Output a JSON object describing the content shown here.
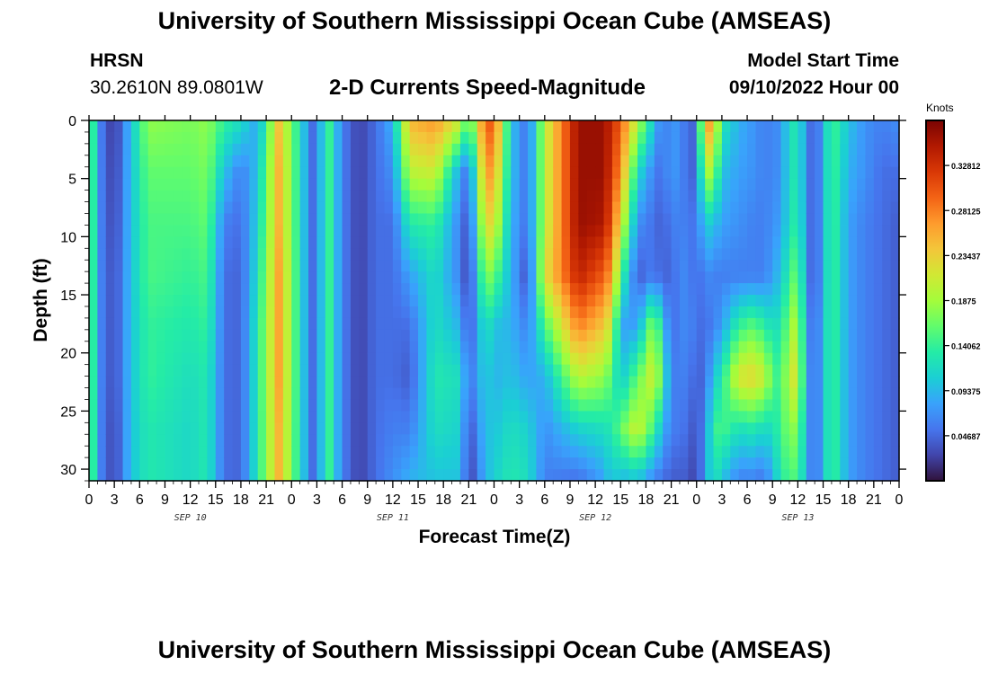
{
  "header": {
    "title": "University of Southern Mississippi Ocean Cube (AMSEAS)",
    "station": "HRSN",
    "coords": "30.2610N  89.0801W",
    "subtitle": "2-D Currents Speed-Magnitude",
    "model_start_label": "Model Start Time",
    "model_start_value": "09/10/2022 Hour 00"
  },
  "footer": {
    "title": "University of Southern Mississippi Ocean Cube (AMSEAS)"
  },
  "chart_data": {
    "type": "heatmap",
    "title": "2-D Currents Speed-Magnitude",
    "xlabel": "Forecast Time(Z)",
    "ylabel": "Depth (ft)",
    "x_tick_labels": [
      "0",
      "3",
      "6",
      "9",
      "12",
      "15",
      "18",
      "21",
      "0",
      "3",
      "6",
      "9",
      "12",
      "15",
      "18",
      "21",
      "0",
      "3",
      "6",
      "9",
      "12",
      "15",
      "18",
      "21",
      "0",
      "3",
      "6",
      "9",
      "12",
      "15",
      "18",
      "21",
      "0"
    ],
    "x_range_hours": [
      0,
      96
    ],
    "date_labels": [
      {
        "label": "SEP 10",
        "hour": 12
      },
      {
        "label": "SEP 11",
        "hour": 36
      },
      {
        "label": "SEP 12",
        "hour": 60
      },
      {
        "label": "SEP 13",
        "hour": 84
      }
    ],
    "y_ticks": [
      0,
      5,
      10,
      15,
      20,
      25,
      30
    ],
    "y_range_ft": [
      0,
      31
    ],
    "y_inverted": true,
    "colorbar": {
      "unit": "Knots",
      "ticks": [
        "0.32812",
        "0.28125",
        "0.23437",
        "0.1875",
        "0.14062",
        "0.09375",
        "0.04687"
      ],
      "tick_values": [
        0.32812,
        0.28125,
        0.23437,
        0.1875,
        0.14062,
        0.09375,
        0.04687
      ],
      "range": [
        0.0,
        0.375
      ],
      "colors": [
        "#30123b",
        "#4145ab",
        "#4675ed",
        "#39a2fc",
        "#1bcfd4",
        "#24eca6",
        "#61fc6c",
        "#a4fc3b",
        "#d1e834",
        "#f3c63a",
        "#fe9b2d",
        "#f36315",
        "#d93806",
        "#b11901",
        "#7a0403"
      ]
    },
    "profiles": [
      {
        "hour": 0,
        "speeds": [
          0.2,
          0.2,
          0.2,
          0.2,
          0.2,
          0.2,
          0.2,
          0.2
        ]
      },
      {
        "hour": 1,
        "speeds": [
          0.07,
          0.07,
          0.07,
          0.07,
          0.07,
          0.07,
          0.07,
          0.07
        ]
      },
      {
        "hour": 3,
        "speeds": [
          0.015,
          0.02,
          0.025,
          0.03,
          0.03,
          0.03,
          0.025,
          0.025
        ]
      },
      {
        "hour": 5,
        "speeds": [
          0.1,
          0.1,
          0.1,
          0.1,
          0.1,
          0.1,
          0.1,
          0.1
        ]
      },
      {
        "hour": 7,
        "speeds": [
          0.18,
          0.16,
          0.15,
          0.15,
          0.14,
          0.14,
          0.13,
          0.13
        ]
      },
      {
        "hour": 12,
        "speeds": [
          0.17,
          0.16,
          0.15,
          0.14,
          0.13,
          0.12,
          0.115,
          0.115
        ]
      },
      {
        "hour": 14,
        "speeds": [
          0.18,
          0.17,
          0.16,
          0.15,
          0.14,
          0.13,
          0.13,
          0.13
        ]
      },
      {
        "hour": 16,
        "speeds": [
          0.14,
          0.1,
          0.06,
          0.05,
          0.05,
          0.05,
          0.05,
          0.05
        ]
      },
      {
        "hour": 18,
        "speeds": [
          0.12,
          0.06,
          0.05,
          0.045,
          0.045,
          0.045,
          0.045,
          0.045
        ]
      },
      {
        "hour": 20,
        "speeds": [
          0.08,
          0.1,
          0.11,
          0.12,
          0.13,
          0.13,
          0.13,
          0.13
        ]
      },
      {
        "hour": 22.5,
        "speeds": [
          0.24,
          0.25,
          0.25,
          0.26,
          0.26,
          0.26,
          0.25,
          0.25
        ]
      },
      {
        "hour": 25,
        "speeds": [
          0.12,
          0.12,
          0.12,
          0.12,
          0.12,
          0.12,
          0.12,
          0.12
        ]
      },
      {
        "hour": 26.5,
        "speeds": [
          0.05,
          0.05,
          0.05,
          0.05,
          0.05,
          0.05,
          0.05,
          0.05
        ]
      },
      {
        "hour": 28.5,
        "speeds": [
          0.14,
          0.14,
          0.14,
          0.14,
          0.14,
          0.14,
          0.14,
          0.14
        ]
      },
      {
        "hour": 30,
        "speeds": [
          0.06,
          0.06,
          0.06,
          0.06,
          0.06,
          0.06,
          0.06,
          0.06
        ]
      },
      {
        "hour": 32,
        "speeds": [
          0.025,
          0.025,
          0.025,
          0.025,
          0.025,
          0.025,
          0.025,
          0.025
        ]
      },
      {
        "hour": 34,
        "speeds": [
          0.05,
          0.05,
          0.05,
          0.05,
          0.05,
          0.05,
          0.05,
          0.05
        ]
      },
      {
        "hour": 36,
        "speeds": [
          0.09,
          0.07,
          0.05,
          0.05,
          0.05,
          0.05,
          0.06,
          0.07
        ]
      },
      {
        "hour": 38,
        "speeds": [
          0.25,
          0.2,
          0.13,
          0.08,
          0.05,
          0.04,
          0.06,
          0.09
        ]
      },
      {
        "hour": 41,
        "speeds": [
          0.27,
          0.21,
          0.14,
          0.12,
          0.12,
          0.13,
          0.12,
          0.1
        ]
      },
      {
        "hour": 44,
        "speeds": [
          0.21,
          0.08,
          0.06,
          0.06,
          0.09,
          0.12,
          0.11,
          0.1
        ]
      },
      {
        "hour": 45,
        "speeds": [
          0.14,
          0.05,
          0.03,
          0.02,
          0.03,
          0.05,
          0.03,
          0.02
        ]
      },
      {
        "hour": 47,
        "speeds": [
          0.3,
          0.27,
          0.23,
          0.18,
          0.13,
          0.11,
          0.1,
          0.09
        ]
      },
      {
        "hour": 48,
        "speeds": [
          0.3,
          0.26,
          0.22,
          0.16,
          0.1,
          0.09,
          0.1,
          0.11
        ]
      },
      {
        "hour": 50,
        "speeds": [
          0.1,
          0.1,
          0.09,
          0.09,
          0.09,
          0.1,
          0.12,
          0.13
        ]
      },
      {
        "hour": 52,
        "speeds": [
          0.05,
          0.05,
          0.05,
          0.03,
          0.06,
          0.08,
          0.11,
          0.12
        ]
      },
      {
        "hour": 54,
        "speeds": [
          0.2,
          0.2,
          0.2,
          0.22,
          0.15,
          0.09,
          0.07,
          0.06
        ]
      },
      {
        "hour": 58,
        "speeds": [
          0.36,
          0.36,
          0.36,
          0.34,
          0.28,
          0.2,
          0.11,
          0.05
        ]
      },
      {
        "hour": 61,
        "speeds": [
          0.36,
          0.36,
          0.35,
          0.3,
          0.24,
          0.18,
          0.12,
          0.08
        ]
      },
      {
        "hour": 62,
        "speeds": [
          0.33,
          0.32,
          0.3,
          0.26,
          0.2,
          0.15,
          0.13,
          0.11
        ]
      },
      {
        "hour": 63,
        "speeds": [
          0.3,
          0.27,
          0.22,
          0.15,
          0.08,
          0.1,
          0.16,
          0.09
        ]
      },
      {
        "hour": 65,
        "speeds": [
          0.2,
          0.12,
          0.07,
          0.04,
          0.08,
          0.16,
          0.21,
          0.1
        ]
      },
      {
        "hour": 67,
        "speeds": [
          0.1,
          0.06,
          0.05,
          0.06,
          0.19,
          0.22,
          0.14,
          0.06
        ]
      },
      {
        "hour": 68,
        "speeds": [
          0.05,
          0.05,
          0.04,
          0.04,
          0.1,
          0.14,
          0.09,
          0.05
        ]
      },
      {
        "hour": 69,
        "speeds": [
          0.08,
          0.08,
          0.06,
          0.05,
          0.05,
          0.06,
          0.06,
          0.04
        ]
      },
      {
        "hour": 71,
        "speeds": [
          0.05,
          0.05,
          0.06,
          0.07,
          0.07,
          0.06,
          0.05,
          0.04
        ]
      },
      {
        "hour": 72,
        "speeds": [
          0.04,
          0.04,
          0.05,
          0.04,
          0.05,
          0.04,
          0.03,
          0.02
        ]
      },
      {
        "hour": 73,
        "speeds": [
          0.28,
          0.2,
          0.11,
          0.07,
          0.05,
          0.05,
          0.07,
          0.08
        ]
      },
      {
        "hour": 74,
        "speeds": [
          0.25,
          0.18,
          0.1,
          0.06,
          0.06,
          0.1,
          0.14,
          0.13
        ]
      },
      {
        "hour": 75,
        "speeds": [
          0.13,
          0.1,
          0.08,
          0.06,
          0.08,
          0.13,
          0.15,
          0.1
        ]
      },
      {
        "hour": 77,
        "speeds": [
          0.09,
          0.08,
          0.07,
          0.06,
          0.14,
          0.22,
          0.12,
          0.06
        ]
      },
      {
        "hour": 79,
        "speeds": [
          0.07,
          0.07,
          0.06,
          0.06,
          0.16,
          0.23,
          0.13,
          0.06
        ]
      },
      {
        "hour": 80,
        "speeds": [
          0.06,
          0.06,
          0.06,
          0.06,
          0.13,
          0.2,
          0.11,
          0.05
        ]
      },
      {
        "hour": 82,
        "speeds": [
          0.07,
          0.07,
          0.08,
          0.1,
          0.12,
          0.13,
          0.14,
          0.13
        ]
      },
      {
        "hour": 83,
        "speeds": [
          0.12,
          0.12,
          0.12,
          0.14,
          0.18,
          0.22,
          0.18,
          0.15
        ]
      },
      {
        "hour": 84,
        "speeds": [
          0.13,
          0.13,
          0.14,
          0.17,
          0.2,
          0.21,
          0.17,
          0.15
        ]
      },
      {
        "hour": 85,
        "speeds": [
          0.07,
          0.07,
          0.07,
          0.07,
          0.08,
          0.09,
          0.09,
          0.09
        ]
      },
      {
        "hour": 86,
        "speeds": [
          0.03,
          0.03,
          0.03,
          0.03,
          0.04,
          0.04,
          0.04,
          0.04
        ]
      },
      {
        "hour": 88,
        "speeds": [
          0.15,
          0.15,
          0.15,
          0.15,
          0.15,
          0.15,
          0.15,
          0.15
        ]
      },
      {
        "hour": 90,
        "speeds": [
          0.1,
          0.09,
          0.08,
          0.08,
          0.08,
          0.08,
          0.08,
          0.08
        ]
      },
      {
        "hour": 92,
        "speeds": [
          0.07,
          0.07,
          0.06,
          0.06,
          0.06,
          0.06,
          0.06,
          0.06
        ]
      },
      {
        "hour": 94,
        "speeds": [
          0.06,
          0.05,
          0.05,
          0.05,
          0.05,
          0.05,
          0.05,
          0.05
        ]
      },
      {
        "hour": 96,
        "speeds": [
          0.07,
          0.05,
          0.04,
          0.04,
          0.04,
          0.04,
          0.04,
          0.04
        ]
      }
    ],
    "profile_depths_ft": [
      0,
      4.4,
      8.9,
      13.3,
      17.7,
      22.1,
      26.6,
      31
    ]
  }
}
